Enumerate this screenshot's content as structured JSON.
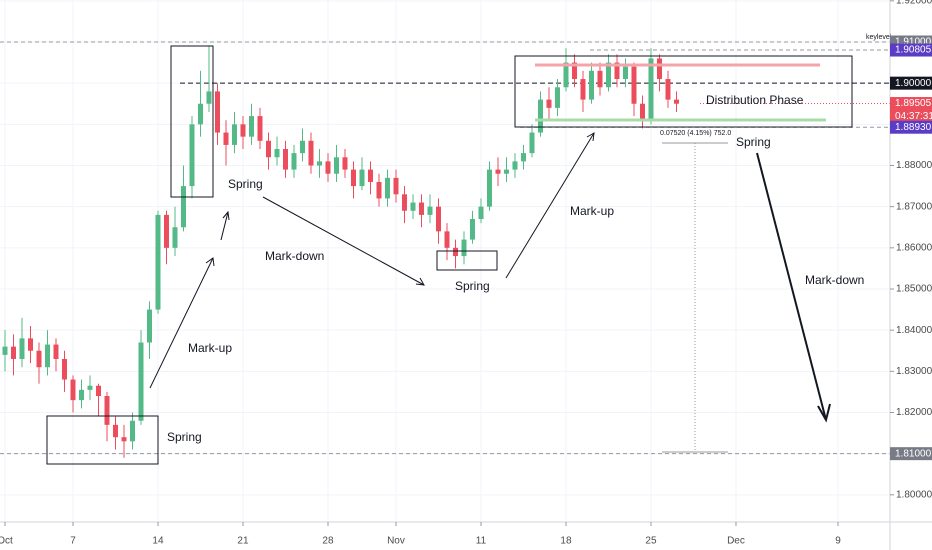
{
  "chart_data": {
    "type": "candlestick",
    "up_color": "#53b987",
    "down_color": "#eb4d5c",
    "xlim": [
      -0.294,
      52.06
    ],
    "ylim": [
      1.7934,
      1.9202
    ],
    "xticks": [
      {
        "value": 0,
        "label": "Oct"
      },
      {
        "value": 4,
        "label": "7"
      },
      {
        "value": 9,
        "label": "14"
      },
      {
        "value": 14,
        "label": "21"
      },
      {
        "value": 19,
        "label": "28"
      },
      {
        "value": 23,
        "label": "Nov"
      },
      {
        "value": 28,
        "label": "11"
      },
      {
        "value": 33,
        "label": "18"
      },
      {
        "value": 38,
        "label": "25"
      },
      {
        "value": 43,
        "label": "Dec"
      },
      {
        "value": 49,
        "label": "9"
      }
    ],
    "yticks": [
      {
        "value": 1.8,
        "label": "1.80000"
      },
      {
        "value": 1.81,
        "label": "1.81000"
      },
      {
        "value": 1.82,
        "label": "1.82000"
      },
      {
        "value": 1.83,
        "label": "1.83000"
      },
      {
        "value": 1.84,
        "label": "1.84000"
      },
      {
        "value": 1.85,
        "label": "1.85000"
      },
      {
        "value": 1.86,
        "label": "1.86000"
      },
      {
        "value": 1.87,
        "label": "1.87000"
      },
      {
        "value": 1.88,
        "label": "1.88000"
      },
      {
        "value": 1.89,
        "label": "1.89000"
      },
      {
        "value": 1.9,
        "label": "1.90000"
      },
      {
        "value": 1.91,
        "label": "1.91000"
      },
      {
        "value": 1.92,
        "label": "1.92000"
      }
    ],
    "x": [
      0,
      0.5,
      1,
      1.5,
      2,
      2.5,
      3,
      3.5,
      4,
      4.5,
      5,
      5.5,
      6,
      6.5,
      7,
      7.5,
      8,
      8.5,
      9,
      9.5,
      10,
      10.5,
      11,
      11.5,
      12,
      12.5,
      13,
      13.5,
      14,
      14.5,
      15,
      15.5,
      16,
      16.5,
      17,
      17.5,
      18,
      18.5,
      19,
      19.5,
      20,
      20.5,
      21,
      21.5,
      22,
      22.5,
      23,
      23.5,
      24,
      24.5,
      25,
      25.5,
      26,
      26.5,
      27,
      27.5,
      28,
      28.5,
      29,
      29.5,
      30,
      30.5,
      31,
      31.5,
      32,
      32.5,
      33,
      33.5,
      34,
      34.5,
      35,
      35.5,
      36,
      36.5,
      37,
      37.5,
      38,
      38.5,
      39,
      39.5
    ],
    "open": [
      1.834,
      1.836,
      1.833,
      1.838,
      1.835,
      1.831,
      1.8365,
      1.833,
      1.828,
      1.823,
      1.8255,
      1.8265,
      1.824,
      1.817,
      1.814,
      1.813,
      1.818,
      1.837,
      1.845,
      1.868,
      1.86,
      1.865,
      1.875,
      1.89,
      1.895,
      1.898,
      1.888,
      1.885,
      1.89,
      1.887,
      1.892,
      1.886,
      1.882,
      1.884,
      1.879,
      1.883,
      1.886,
      1.88,
      1.881,
      1.878,
      1.882,
      1.879,
      1.875,
      1.879,
      1.876,
      1.872,
      1.877,
      1.873,
      1.869,
      1.871,
      1.868,
      1.87,
      1.864,
      1.86,
      1.858,
      1.862,
      1.867,
      1.87,
      1.879,
      1.878,
      1.879,
      1.881,
      1.883,
      1.888,
      1.896,
      1.894,
      1.899,
      1.905,
      1.901,
      1.896,
      1.903,
      1.899,
      1.905,
      1.901,
      1.904,
      1.895,
      1.891,
      1.906,
      1.901,
      1.896
    ],
    "high": [
      1.84,
      1.839,
      1.843,
      1.841,
      1.837,
      1.84,
      1.838,
      1.835,
      1.829,
      1.828,
      1.829,
      1.827,
      1.825,
      1.819,
      1.817,
      1.82,
      1.84,
      1.847,
      1.869,
      1.869,
      1.87,
      1.88,
      1.892,
      1.903,
      1.909,
      1.9,
      1.891,
      1.893,
      1.892,
      1.895,
      1.894,
      1.888,
      1.887,
      1.886,
      1.885,
      1.889,
      1.888,
      1.884,
      1.883,
      1.885,
      1.884,
      1.881,
      1.882,
      1.881,
      1.878,
      1.879,
      1.879,
      1.875,
      1.873,
      1.873,
      1.873,
      1.872,
      1.866,
      1.862,
      1.864,
      1.869,
      1.872,
      1.881,
      1.882,
      1.882,
      1.883,
      1.885,
      1.89,
      1.898,
      1.899,
      1.901,
      1.9085,
      1.907,
      1.903,
      1.905,
      1.905,
      1.907,
      1.907,
      1.906,
      1.905,
      1.897,
      1.9085,
      1.907,
      1.903,
      1.898
    ],
    "low": [
      1.83,
      1.829,
      1.831,
      1.832,
      1.827,
      1.829,
      1.83,
      1.825,
      1.82,
      1.821,
      1.823,
      1.819,
      1.813,
      1.811,
      1.809,
      1.811,
      1.817,
      1.833,
      1.844,
      1.856,
      1.858,
      1.864,
      1.872,
      1.887,
      1.893,
      1.885,
      1.88,
      1.883,
      1.884,
      1.885,
      1.884,
      1.879,
      1.88,
      1.877,
      1.877,
      1.881,
      1.878,
      1.877,
      1.876,
      1.876,
      1.877,
      1.872,
      1.874,
      1.873,
      1.87,
      1.87,
      1.871,
      1.866,
      1.867,
      1.865,
      1.866,
      1.861,
      1.857,
      1.855,
      1.856,
      1.861,
      1.866,
      1.869,
      1.875,
      1.876,
      1.877,
      1.879,
      1.882,
      1.887,
      1.891,
      1.892,
      1.898,
      1.899,
      1.893,
      1.895,
      1.897,
      1.898,
      1.899,
      1.899,
      1.892,
      1.889,
      1.89,
      1.898,
      1.894,
      1.893
    ],
    "close": [
      1.836,
      1.833,
      1.838,
      1.835,
      1.831,
      1.8365,
      1.833,
      1.828,
      1.823,
      1.8255,
      1.8265,
      1.824,
      1.817,
      1.814,
      1.813,
      1.818,
      1.837,
      1.845,
      1.868,
      1.86,
      1.865,
      1.875,
      1.89,
      1.895,
      1.898,
      1.888,
      1.885,
      1.89,
      1.887,
      1.892,
      1.886,
      1.882,
      1.884,
      1.879,
      1.883,
      1.886,
      1.88,
      1.881,
      1.878,
      1.882,
      1.879,
      1.875,
      1.879,
      1.876,
      1.872,
      1.877,
      1.873,
      1.869,
      1.871,
      1.868,
      1.87,
      1.864,
      1.86,
      1.858,
      1.862,
      1.867,
      1.87,
      1.879,
      1.878,
      1.879,
      1.881,
      1.883,
      1.888,
      1.896,
      1.894,
      1.899,
      1.905,
      1.901,
      1.896,
      1.903,
      1.899,
      1.905,
      1.901,
      1.904,
      1.895,
      1.891,
      1.906,
      1.901,
      1.896,
      1.895
    ],
    "levels": [
      {
        "value": 1.91,
        "label": "1.91000",
        "color": "#787b86"
      },
      {
        "value": 1.90805,
        "label": "1.90805",
        "color": "#5b3cc4"
      },
      {
        "value": 1.9,
        "label": "1.90000",
        "color": "#131722"
      },
      {
        "value": 1.89505,
        "label": "1.89505",
        "color": "#eb4d5c"
      },
      {
        "value": 1.8893,
        "label": "1.88930",
        "color": "#5b3cc4"
      },
      {
        "value": 1.81,
        "label": "1.81000",
        "color": "#787b86"
      }
    ],
    "countdown": "04:37:31",
    "level_note": "keylevel",
    "measure": "0.07520 (4.15%) 752.0",
    "annotations": [
      "Spring",
      "Mark-down",
      "Spring",
      "Mark-up",
      "Distribution Phase",
      "Spring",
      "Mark-down",
      "Mark-up",
      "Spring"
    ]
  }
}
